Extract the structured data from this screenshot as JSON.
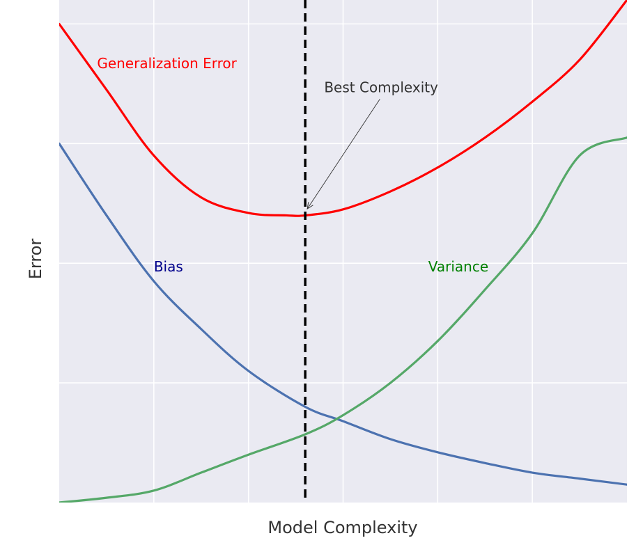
{
  "chart_data": {
    "type": "line",
    "title": "",
    "xlabel": "Model Complexity",
    "ylabel": "Error",
    "xlim": [
      0,
      6
    ],
    "ylim": [
      0,
      4.2
    ],
    "grid": true,
    "series": [
      {
        "name": "Generalization Error",
        "color": "#ff0000",
        "x": [
          0,
          0.5,
          1,
          1.5,
          2,
          2.4,
          2.6,
          3,
          3.5,
          4,
          4.5,
          5,
          5.5,
          6
        ],
        "y": [
          4.0,
          3.45,
          2.9,
          2.55,
          2.42,
          2.4,
          2.4,
          2.45,
          2.6,
          2.8,
          3.05,
          3.35,
          3.7,
          4.2
        ]
      },
      {
        "name": "Bias",
        "color": "#4c72b0",
        "x": [
          0,
          0.5,
          1,
          1.5,
          2,
          2.6,
          3,
          3.5,
          4,
          4.5,
          5,
          5.5,
          6
        ],
        "y": [
          3.0,
          2.4,
          1.85,
          1.45,
          1.1,
          0.8,
          0.68,
          0.53,
          0.42,
          0.33,
          0.25,
          0.2,
          0.15
        ]
      },
      {
        "name": "Variance",
        "color": "#55a868",
        "x": [
          0,
          0.5,
          1,
          1.5,
          2,
          2.6,
          3,
          3.5,
          4,
          4.5,
          5,
          5.5,
          6
        ],
        "y": [
          0.0,
          0.04,
          0.1,
          0.25,
          0.4,
          0.57,
          0.73,
          1.0,
          1.35,
          1.78,
          2.25,
          2.9,
          3.05
        ]
      }
    ],
    "vline": {
      "x": 2.6,
      "style": "dashed",
      "color": "#000000"
    },
    "annotations": [
      {
        "text": "Generalization Error",
        "color": "#ff0000",
        "x": 0.4,
        "y": 3.63
      },
      {
        "text": "Best Complexity",
        "color": "#333333",
        "x": 2.8,
        "y": 3.43,
        "arrow_to": [
          2.6,
          2.42
        ]
      },
      {
        "text": "Bias",
        "color": "#00008b",
        "x": 1.0,
        "y": 1.93
      },
      {
        "text": "Variance",
        "color": "#008000",
        "x": 3.9,
        "y": 1.93
      }
    ],
    "colors": {
      "plot_background": "#eaeaf2",
      "gridline": "#ffffff",
      "axis_label": "#333333"
    }
  }
}
